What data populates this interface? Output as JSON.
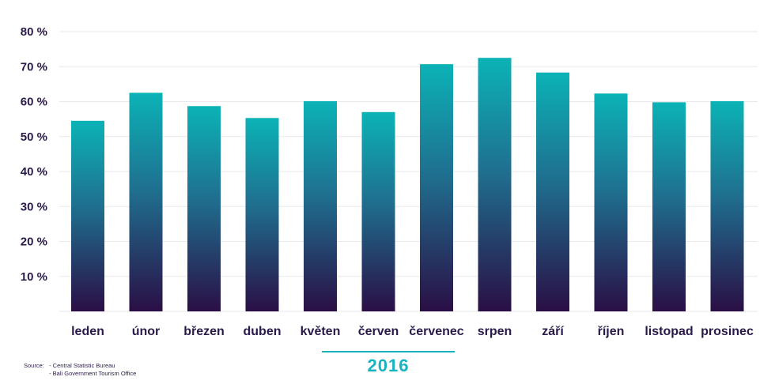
{
  "colors": {
    "bar_top": "#0bb3b6",
    "bar_bottom": "#2a0f45",
    "text": "#2a1a4a",
    "accent": "#16b4bf",
    "grid": "#e9e9ee"
  },
  "chart_data": {
    "type": "bar",
    "categories": [
      "leden",
      "únor",
      "březen",
      "duben",
      "květen",
      "červen",
      "červenec",
      "srpen",
      "září",
      "říjen",
      "listopad",
      "prosinec"
    ],
    "values": [
      54.5,
      62.5,
      58.7,
      55.3,
      60.1,
      57.0,
      70.7,
      72.5,
      68.3,
      62.3,
      59.8,
      60.1
    ],
    "ylim": [
      0,
      80
    ],
    "yticks": [
      {
        "value": 10,
        "label": "10 %"
      },
      {
        "value": 20,
        "label": "20 %"
      },
      {
        "value": 30,
        "label": "30 %"
      },
      {
        "value": 40,
        "label": "40 %"
      },
      {
        "value": 50,
        "label": "50 %"
      },
      {
        "value": 60,
        "label": "60 %"
      },
      {
        "value": 70,
        "label": "70 %"
      },
      {
        "value": 80,
        "label": "80 %"
      }
    ],
    "grid": true,
    "group_label": "2016"
  },
  "source": {
    "label": "Source:",
    "items": [
      "- Central Statistic Bureau",
      "- Bali Government Tourism Office"
    ]
  }
}
